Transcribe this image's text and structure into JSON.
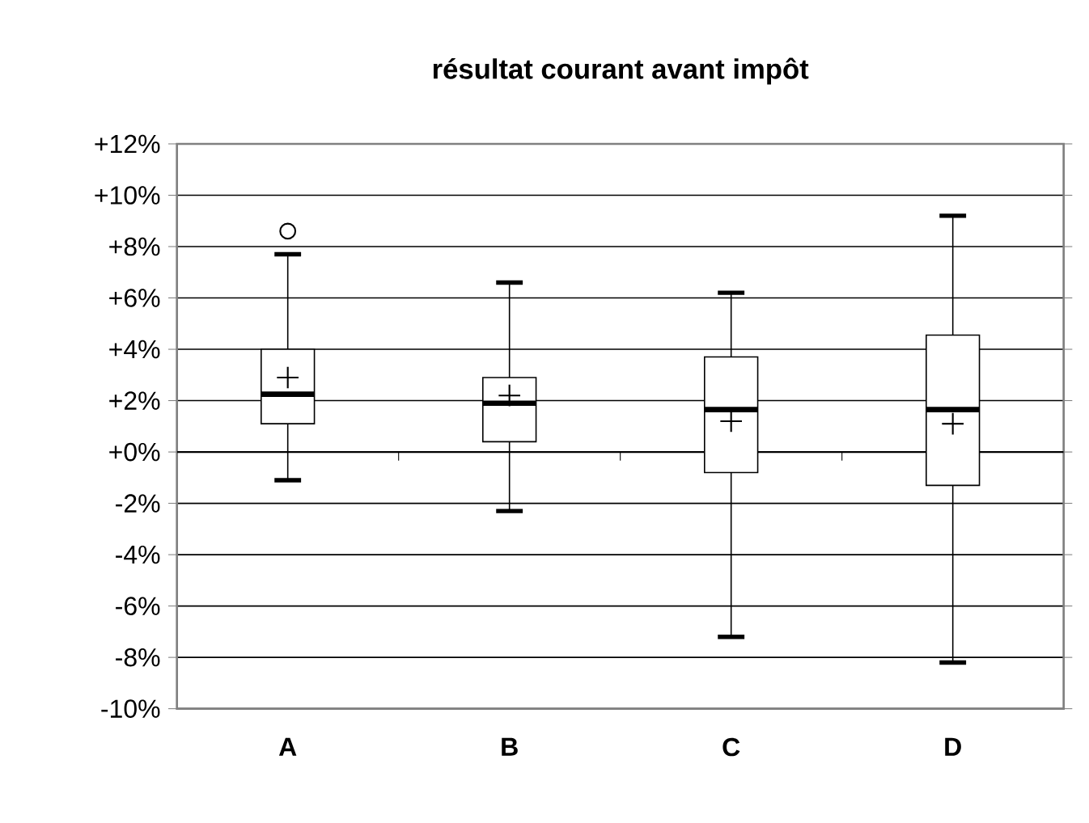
{
  "chart_data": {
    "type": "box",
    "title": "résultat courant avant impôt",
    "categories": [
      "A",
      "B",
      "C",
      "D"
    ],
    "boxes": [
      {
        "low": -1.1,
        "q1": 1.1,
        "median": 2.25,
        "q3": 4.0,
        "high": 7.7,
        "mean": 2.9,
        "outliers": [
          8.6
        ]
      },
      {
        "low": -2.3,
        "q1": 0.4,
        "median": 1.9,
        "q3": 2.9,
        "high": 6.6,
        "mean": 2.2
      },
      {
        "low": -7.2,
        "q1": -0.8,
        "median": 1.65,
        "q3": 3.7,
        "high": 6.2,
        "mean": 1.2
      },
      {
        "low": -8.2,
        "q1": -1.3,
        "median": 1.65,
        "q3": 4.55,
        "high": 9.2,
        "mean": 1.1
      }
    ],
    "color": "#000000",
    "ylim": [
      -10,
      12
    ],
    "yticks": [
      {
        "value": -10,
        "label": "-10%"
      },
      {
        "value": -8,
        "label": "-8%"
      },
      {
        "value": -6,
        "label": "-6%"
      },
      {
        "value": -4,
        "label": "-4%"
      },
      {
        "value": -2,
        "label": "-2%"
      },
      {
        "value": 0,
        "label": "+0%"
      },
      {
        "value": 2,
        "label": "+2%"
      },
      {
        "value": 4,
        "label": "+4%"
      },
      {
        "value": 6,
        "label": "+6%"
      },
      {
        "value": 8,
        "label": "+8%"
      },
      {
        "value": 10,
        "label": "+10%"
      },
      {
        "value": 12,
        "label": "+12%"
      }
    ],
    "grid": "y",
    "marker": "cross"
  }
}
